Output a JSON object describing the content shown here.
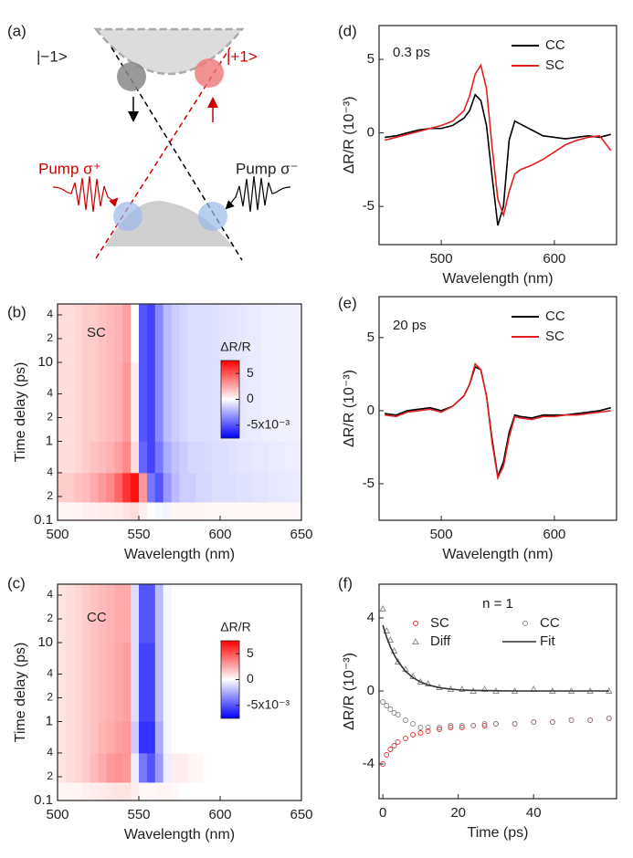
{
  "diagram": {
    "panel_label": "(a)",
    "state_minus": "|−1>",
    "state_plus": "|+1>",
    "pump_plus": "Pump σ⁺",
    "pump_minus": "Pump σ⁻"
  },
  "chart_data": [
    {
      "type": "heatmap",
      "panel_label": "(b)",
      "annotation": "SC",
      "xlabel": "Wavelength (nm)",
      "ylabel": "Time delay (ps)",
      "colorbar_label": "ΔR/R",
      "xlim": [
        500,
        650
      ],
      "xticks": [
        500,
        550,
        600,
        650
      ],
      "ylim": [
        0.1,
        55
      ],
      "ylog": true,
      "yticks": [
        0.1,
        {
          "value": 0.2,
          "label": "2"
        },
        {
          "value": 0.4,
          "label": "4"
        },
        1,
        {
          "value": 2,
          "label": "2"
        },
        {
          "value": 4,
          "label": "4"
        },
        10,
        {
          "value": 20,
          "label": "2"
        },
        {
          "value": 40,
          "label": "4"
        }
      ],
      "zlim": [
        -7.5,
        7.5
      ],
      "zticks": [
        5,
        0,
        {
          "value": -5,
          "label": "-5x10⁻³"
        }
      ],
      "colormap": [
        "#0000ff",
        "#ffffff",
        "#ff0000"
      ],
      "x_bins": [
        500,
        505,
        510,
        515,
        520,
        525,
        530,
        535,
        540,
        545,
        550,
        555,
        560,
        565,
        570,
        575,
        580,
        585,
        590,
        595,
        600,
        605,
        610,
        615,
        620,
        625,
        630,
        635,
        640,
        645,
        650
      ],
      "y_bins": [
        0.1,
        0.17,
        0.4,
        1,
        10,
        55
      ],
      "z": [
        [
          0.3,
          0.3,
          0.3,
          0.4,
          0.4,
          0.5,
          0.5,
          0.6,
          0.8,
          1.0,
          0.5,
          0,
          -0.2,
          -0.3,
          0.3,
          0.3,
          0.3,
          0.3,
          0.2,
          0.2,
          0.2,
          0.2,
          0.2,
          0.2,
          0.2,
          0.2,
          0.2,
          0.2,
          0.2,
          0.2
        ],
        [
          1.5,
          1.5,
          1.8,
          2,
          2.5,
          3,
          3.5,
          4.5,
          6,
          7,
          3,
          -4,
          -5,
          -3,
          -2,
          -1.5,
          -1.5,
          -1.2,
          -1.2,
          -1,
          -1,
          -1,
          -0.9,
          -0.9,
          -0.8,
          -0.8,
          -0.7,
          -0.7,
          -0.6,
          -0.6
        ],
        [
          1,
          1,
          1.2,
          1.5,
          1.8,
          2,
          2.3,
          2.8,
          3.5,
          1,
          -4.5,
          -5.5,
          -4,
          -2.5,
          -1.8,
          -1.5,
          -1.2,
          -1.2,
          -1.1,
          -1,
          -1,
          -0.9,
          -0.8,
          -0.8,
          -0.7,
          -0.7,
          -0.6,
          -0.6,
          -0.5,
          -0.5
        ],
        [
          1,
          1,
          1.2,
          1.5,
          1.5,
          1.8,
          2,
          2.3,
          3,
          0.5,
          -5,
          -5.5,
          -3.5,
          -2,
          -1.5,
          -1.2,
          -1,
          -1,
          -1,
          -0.9,
          -0.8,
          -0.8,
          -0.7,
          -0.6,
          -0.6,
          -0.5,
          -0.5,
          -0.4,
          -0.4,
          -0.4
        ],
        [
          1,
          1,
          1.2,
          1.5,
          1.5,
          1.8,
          2,
          2.2,
          2.8,
          0,
          -5,
          -5.5,
          -3.5,
          -2,
          -1.5,
          -1.2,
          -1,
          -1,
          -1,
          -0.9,
          -0.8,
          -0.8,
          -0.7,
          -0.6,
          -0.6,
          -0.5,
          -0.5,
          -0.4,
          -0.4,
          -0.4
        ]
      ]
    },
    {
      "type": "heatmap",
      "panel_label": "(c)",
      "annotation": "CC",
      "xlabel": "Wavelength (nm)",
      "ylabel": "Time delay (ps)",
      "colorbar_label": "ΔR/R",
      "xlim": [
        500,
        650
      ],
      "xticks": [
        500,
        550,
        600,
        650
      ],
      "ylim": [
        0.1,
        55
      ],
      "ylog": true,
      "yticks": [
        0.1,
        {
          "value": 0.2,
          "label": "2"
        },
        {
          "value": 0.4,
          "label": "4"
        },
        1,
        {
          "value": 2,
          "label": "2"
        },
        {
          "value": 4,
          "label": "4"
        },
        10,
        {
          "value": 20,
          "label": "2"
        },
        {
          "value": 40,
          "label": "4"
        }
      ],
      "zlim": [
        -7.5,
        7.5
      ],
      "zticks": [
        5,
        0,
        {
          "value": -5,
          "label": "-5x10⁻³"
        }
      ],
      "colormap": [
        "#0000ff",
        "#ffffff",
        "#ff0000"
      ],
      "x_bins": [
        500,
        505,
        510,
        515,
        520,
        525,
        530,
        535,
        540,
        545,
        550,
        555,
        560,
        565,
        570,
        575,
        580,
        585,
        590,
        595,
        600,
        605,
        610,
        615,
        620,
        625,
        630,
        635,
        640,
        645,
        650
      ],
      "y_bins": [
        0.1,
        0.17,
        0.4,
        1,
        10,
        55
      ],
      "z": [
        [
          0.3,
          0.3,
          0.3,
          0.4,
          0.5,
          0.6,
          0.7,
          0.8,
          0.8,
          0.5,
          0.2,
          0.2,
          0.3,
          0.3,
          0.2,
          0,
          0,
          0,
          0,
          0,
          0,
          0,
          0,
          0,
          0,
          0,
          0,
          0,
          0,
          0
        ],
        [
          0.8,
          1,
          1.2,
          1.5,
          2,
          2.5,
          3,
          3.2,
          3,
          -0.5,
          -4,
          -5,
          -3,
          -0.5,
          0.5,
          0.5,
          0.3,
          0.2,
          0,
          0,
          0,
          0,
          0,
          0,
          0,
          0,
          0,
          0,
          0,
          0
        ],
        [
          0.8,
          1,
          1.2,
          1.5,
          1.8,
          2.2,
          2.5,
          2.8,
          3,
          -1.5,
          -6,
          -6,
          -2.5,
          -0.3,
          0,
          0,
          0,
          0,
          0,
          0,
          0,
          0,
          0,
          0,
          0,
          0,
          0,
          0,
          0,
          0
        ],
        [
          0.8,
          1,
          1.2,
          1.5,
          1.8,
          2,
          2.3,
          2.6,
          2.8,
          -1,
          -5.5,
          -5.5,
          -2,
          -0.3,
          0,
          0,
          0,
          0,
          0,
          0,
          0,
          0,
          0,
          0,
          0,
          0,
          0,
          0,
          0,
          0
        ],
        [
          0.8,
          1,
          1.2,
          1.5,
          1.8,
          2,
          2.2,
          2.5,
          2.5,
          -1,
          -5,
          -5,
          -2,
          -0.3,
          0,
          0,
          0,
          0,
          0,
          0,
          0,
          0,
          0,
          0,
          0,
          0,
          0,
          0,
          0,
          0
        ]
      ]
    },
    {
      "type": "line",
      "panel_label": "(d)",
      "annotation": "0.3 ps",
      "xlabel": "Wavelength (nm)",
      "ylabel": "ΔR/R (10⁻³)",
      "legend": "upper right",
      "xlim": [
        445,
        655
      ],
      "xticks": [
        500,
        600
      ],
      "ylim": [
        -7.6,
        7.3
      ],
      "yticks": [
        -5,
        0,
        5
      ],
      "x": [
        450,
        460,
        470,
        480,
        490,
        500,
        510,
        520,
        525,
        530,
        535,
        540,
        545,
        550,
        555,
        560,
        565,
        570,
        580,
        590,
        600,
        610,
        620,
        630,
        640,
        650
      ],
      "series": [
        {
          "name": "CC",
          "color": "#000000",
          "values": [
            -0.3,
            -0.2,
            0,
            0.2,
            0.3,
            0.3,
            0.5,
            1,
            1.5,
            2.6,
            2.2,
            0.5,
            -3,
            -6.3,
            -5,
            -0.5,
            0.8,
            0.6,
            0.2,
            -0.2,
            -0.3,
            -0.4,
            -0.3,
            -0.2,
            -0.3,
            -0.1
          ]
        },
        {
          "name": "SC",
          "color": "#e02020",
          "values": [
            -0.5,
            -0.3,
            -0.1,
            0.1,
            0.3,
            0.5,
            0.8,
            1.5,
            2.5,
            4,
            4.6,
            3,
            -1,
            -4.5,
            -5.6,
            -4,
            -2.8,
            -2.5,
            -2.2,
            -1.8,
            -1.3,
            -0.8,
            -0.5,
            -0.3,
            -0.2,
            -1.2
          ]
        }
      ]
    },
    {
      "type": "line",
      "panel_label": "(e)",
      "annotation": "20 ps",
      "xlabel": "Wavelength (nm)",
      "ylabel": "ΔR/R (10⁻³)",
      "legend": "upper right",
      "xlim": [
        445,
        655
      ],
      "xticks": [
        500,
        600
      ],
      "ylim": [
        -7.5,
        7.8
      ],
      "yticks": [
        -5,
        0,
        5
      ],
      "x": [
        450,
        460,
        470,
        480,
        490,
        500,
        510,
        520,
        525,
        530,
        535,
        540,
        545,
        550,
        555,
        560,
        565,
        570,
        580,
        590,
        600,
        610,
        620,
        630,
        640,
        650
      ],
      "series": [
        {
          "name": "CC",
          "color": "#000000",
          "values": [
            -0.2,
            -0.3,
            0,
            0.1,
            0.2,
            0,
            0.3,
            1,
            1.8,
            3,
            2.8,
            1,
            -2,
            -4.5,
            -3.5,
            -1.5,
            -0.3,
            -0.4,
            -0.5,
            -0.3,
            -0.3,
            -0.3,
            -0.2,
            -0.1,
            0,
            0.2
          ]
        },
        {
          "name": "SC",
          "color": "#e02020",
          "values": [
            -0.3,
            -0.4,
            -0.1,
            0,
            0.1,
            -0.1,
            0.3,
            1,
            1.8,
            3.2,
            2.8,
            1,
            -2.2,
            -4.6,
            -3.8,
            -1.8,
            -0.4,
            -0.5,
            -0.6,
            -0.4,
            -0.4,
            -0.3,
            -0.3,
            -0.2,
            -0.1,
            0
          ]
        }
      ]
    },
    {
      "type": "scatter",
      "panel_label": "(f)",
      "annotation": "n = 1",
      "xlabel": "Time (ps)",
      "ylabel": "ΔR/R (10⁻³)",
      "legend": "upper right",
      "xlim": [
        -1,
        62
      ],
      "xticks": [
        0,
        20,
        40
      ],
      "ylim": [
        -5.9,
        5.85
      ],
      "yticks": [
        -4,
        0,
        4
      ],
      "x": [
        0,
        1,
        2,
        3,
        4,
        6,
        8,
        10,
        12,
        15,
        18,
        21,
        24,
        27,
        30,
        35,
        40,
        45,
        50,
        55,
        60
      ],
      "series": [
        {
          "name": "SC",
          "color": "#e03030",
          "marker": "circle",
          "values": [
            -4,
            -3.5,
            -3.2,
            -3,
            -2.8,
            -2.6,
            -2.4,
            -2.3,
            -2.2,
            -2.1,
            -2,
            -2,
            -1.9,
            -1.9,
            -1.8,
            -1.8,
            -1.7,
            -1.7,
            -1.6,
            -1.6,
            -1.5
          ]
        },
        {
          "name": "CC",
          "color": "#888888",
          "marker": "circle",
          "values": [
            -0.6,
            -0.8,
            -1,
            -1.2,
            -1.3,
            -1.6,
            -1.8,
            -2,
            -2,
            -2,
            -1.9,
            -1.9,
            -1.9,
            -1.8,
            -1.8,
            -1.8,
            -1.7,
            -1.7,
            -1.6,
            -1.6,
            -1.5
          ]
        },
        {
          "name": "Diff",
          "color": "#888888",
          "marker": "triangle",
          "values": [
            4.5,
            3.3,
            2.8,
            2.2,
            1.6,
            1.2,
            0.8,
            0.5,
            0.4,
            0.2,
            0.1,
            0.1,
            0,
            0.1,
            0,
            0,
            0.1,
            0,
            0,
            0,
            0
          ]
        },
        {
          "name": "Fit",
          "color": "#333333",
          "marker": "line",
          "values": [
            3.6,
            2.95,
            2.41,
            1.98,
            1.62,
            1.08,
            0.73,
            0.49,
            0.33,
            0.18,
            0.1,
            0.05,
            0.03,
            0.02,
            0.01,
            0,
            0,
            0,
            0,
            0,
            0
          ]
        }
      ]
    }
  ]
}
